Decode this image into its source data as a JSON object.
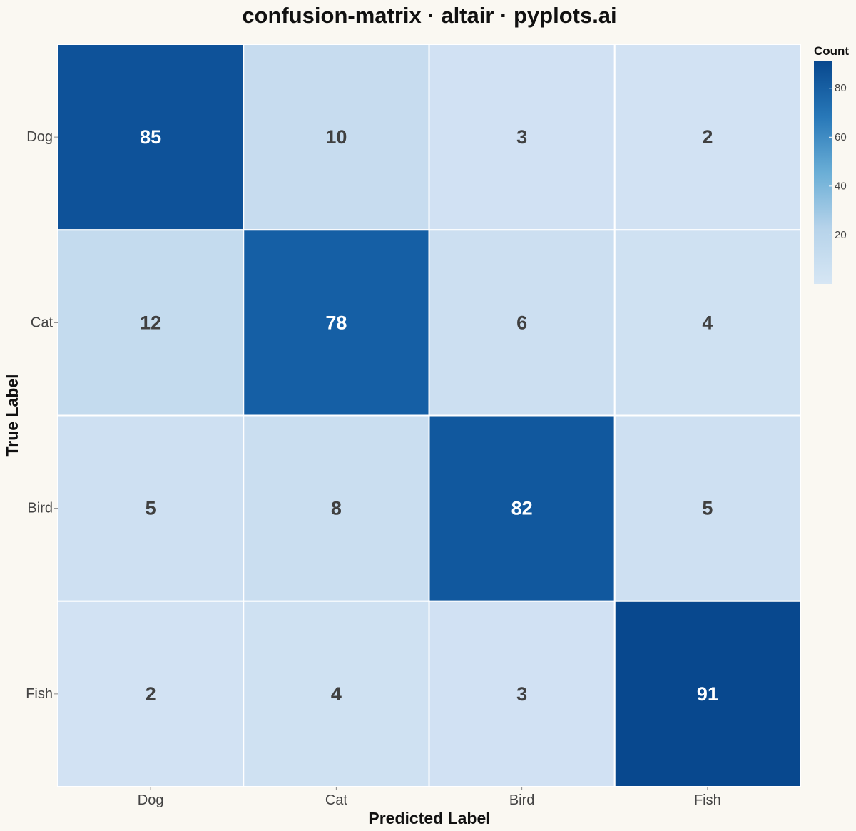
{
  "chart_data": {
    "type": "heatmap",
    "title": "confusion-matrix · altair · pyplots.ai",
    "xlabel": "Predicted Label",
    "ylabel": "True Label",
    "x_categories": [
      "Dog",
      "Cat",
      "Bird",
      "Fish"
    ],
    "y_categories": [
      "Dog",
      "Cat",
      "Bird",
      "Fish"
    ],
    "values": [
      [
        85,
        10,
        3,
        2
      ],
      [
        12,
        78,
        6,
        4
      ],
      [
        5,
        8,
        82,
        5
      ],
      [
        2,
        4,
        3,
        91
      ]
    ],
    "legend": {
      "title": "Count",
      "ticks": [
        20,
        40,
        60,
        80
      ],
      "range": [
        0,
        91
      ],
      "position": "top-right"
    },
    "colors": {
      "low": "#d2e2f3",
      "high": "#08488e",
      "light_text": "#ffffff",
      "dark_text": "#404040",
      "grid": "#ffffff"
    }
  }
}
